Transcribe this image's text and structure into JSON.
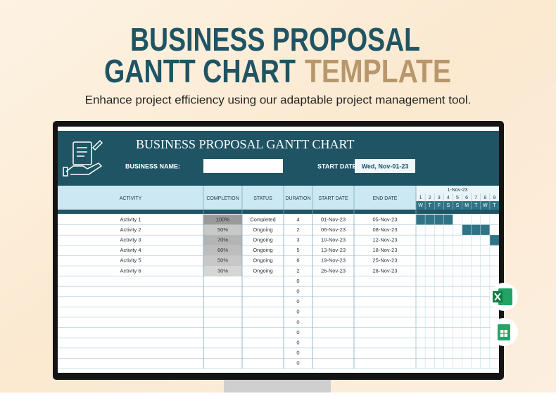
{
  "header": {
    "title_line1": "BUSINESS PROPOSAL",
    "title_line2a": "GANTT CHART",
    "title_line2b": "TEMPLATE",
    "subtitle": "Enhance project efficiency using our adaptable project management tool."
  },
  "sheet": {
    "title": "BUSINESS PROPOSAL GANTT CHART",
    "business_name_label": "BUSINESS NAME:",
    "start_date_label": "START DATE",
    "start_date": "Wed, Nov-01-23",
    "columns": [
      "ACTIVITY",
      "COMPLETION",
      "STATUS",
      "DURATION",
      "START DATE",
      "END DATE"
    ],
    "rows": [
      [
        "Activity 1",
        "100%",
        "Completed",
        "4",
        "01-Nov-23",
        "05-Nov-23"
      ],
      [
        "Activity 2",
        "50%",
        "Ongoing",
        "2",
        "06-Nov-23",
        "08-Nov-23"
      ],
      [
        "Activity 3",
        "70%",
        "Ongoing",
        "3",
        "10-Nov-23",
        "12-Nov-23"
      ],
      [
        "Activity 4",
        "60%",
        "Ongoing",
        "5",
        "13-Nov-23",
        "18-Nov-23"
      ],
      [
        "Activity 5",
        "50%",
        "Ongoing",
        "6",
        "19-Nov-23",
        "25-Nov-23"
      ],
      [
        "Activity 6",
        "30%",
        "Ongoing",
        "2",
        "26-Nov-23",
        "28-Nov-23"
      ]
    ],
    "blank_row_durations": [
      "0",
      "0",
      "0",
      "0",
      "0",
      "0",
      "0",
      "0",
      "0"
    ],
    "gantt_month": "1-Nov-23",
    "gantt_days": [
      "1",
      "2",
      "3",
      "4",
      "5",
      "6",
      "7",
      "8",
      "9"
    ],
    "gantt_weekdays": [
      "W",
      "T",
      "F",
      "S",
      "S",
      "M",
      "T",
      "W",
      "T"
    ]
  }
}
